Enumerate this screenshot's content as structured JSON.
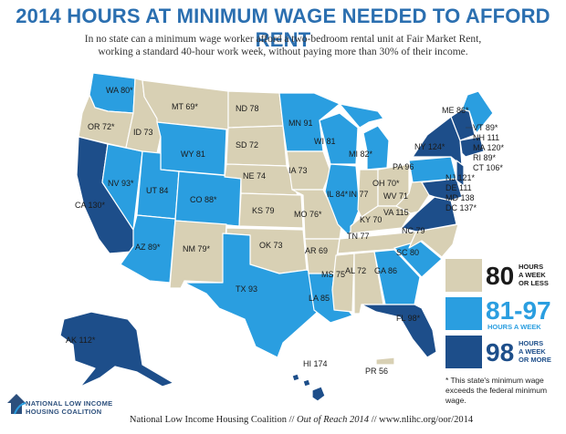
{
  "title": "2014 HOURS AT MINIMUM WAGE NEEDED TO AFFORD RENT",
  "subtitle_line1": "In no state can a minimum wage worker afford a two-bedroom rental unit at Fair Market Rent,",
  "subtitle_line2": "working a standard 40-hour work week, without paying more than 30% of their income.",
  "colors": {
    "low": "#d8d0b4",
    "mid": "#2a9ee0",
    "high": "#1d4e8a",
    "title": "#2b6fb0"
  },
  "states": {
    "WA": "WA 80*",
    "OR": "OR 72*",
    "CA": "CA 130*",
    "ID": "ID 73",
    "NV": "NV 93*",
    "MT": "MT 69*",
    "WY": "WY 81",
    "UT": "UT 84",
    "AZ": "AZ 89*",
    "CO": "CO 88*",
    "NM": "NM 79*",
    "ND": "ND 78",
    "SD": "SD 72",
    "NE": "NE 74",
    "KS": "KS 79",
    "OK": "OK 73",
    "TX": "TX 93",
    "MN": "MN 91",
    "IA": "IA 73",
    "MO": "MO 76*",
    "AR": "AR 69",
    "LA": "LA 85",
    "WI": "WI 81",
    "IL": "IL 84*",
    "MI": "MI 82*",
    "IN": "IN 77",
    "OH": "OH 70*",
    "KY": "KY 70",
    "TN": "TN 77",
    "MS": "MS 75",
    "AL": "AL 72",
    "GA": "GA 86",
    "FL": "FL 98*",
    "SC": "SC 80",
    "NC": "NC 79",
    "VA": "VA 115",
    "WV": "WV 71",
    "PA": "PA 96",
    "NY": "NY 124*",
    "ME": "ME 86*",
    "AK": "AK 112*",
    "HI": "HI 174",
    "PR": "PR 56"
  },
  "northeast_labels": [
    "VT 89*",
    "NH 111",
    "MA 120*",
    "RI 89*",
    "CT 106*",
    "NJ 121*",
    "DE 111",
    "MD 138",
    "DC 137*"
  ],
  "legend": [
    {
      "number": "80",
      "text1": "HOURS",
      "text2": "A WEEK",
      "text3": "OR LESS"
    },
    {
      "number": "81-97",
      "text1": "HOURS A WEEK",
      "text2": "",
      "text3": ""
    },
    {
      "number": "98",
      "text1": "HOURS",
      "text2": "A WEEK",
      "text3": "OR MORE"
    }
  ],
  "note": "* This state's minimum wage exceeds the federal minimum wage.",
  "logo": {
    "line1": "NATIONAL LOW INCOME",
    "line2": "HOUSING COALITION"
  },
  "footer": {
    "part1": "National Low Income Housing Coalition  //  ",
    "part2": "Out of Reach 2014",
    "part3": "  //  www.nlihc.org/oor/2014"
  }
}
